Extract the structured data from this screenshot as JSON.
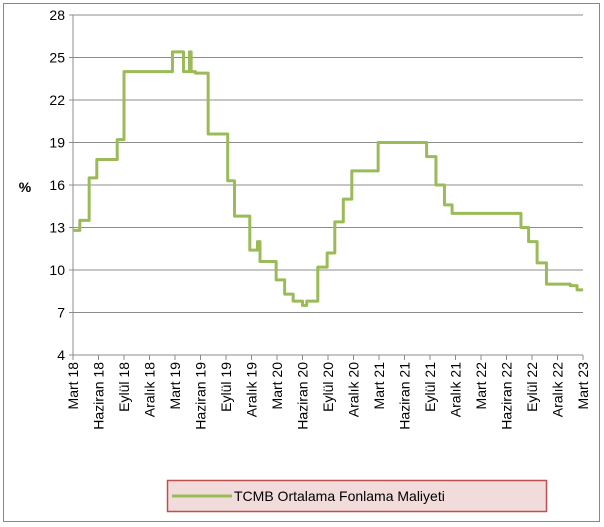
{
  "chart_data": {
    "type": "line",
    "ylabel": "%",
    "xlim": [
      0,
      60
    ],
    "ylim": [
      4,
      28
    ],
    "yticks": [
      4,
      7,
      10,
      13,
      16,
      19,
      22,
      25,
      28
    ],
    "xticks": [
      {
        "value": 0,
        "label": "Mart 18"
      },
      {
        "value": 3,
        "label": "Haziran 18"
      },
      {
        "value": 6,
        "label": "Eylül 18"
      },
      {
        "value": 9,
        "label": "Aralık 18"
      },
      {
        "value": 12,
        "label": "Mart 19"
      },
      {
        "value": 15,
        "label": "Haziran 19"
      },
      {
        "value": 18,
        "label": "Eylül 19"
      },
      {
        "value": 21,
        "label": "Aralık 19"
      },
      {
        "value": 24,
        "label": "Mart 20"
      },
      {
        "value": 27,
        "label": "Haziran 20"
      },
      {
        "value": 30,
        "label": "Eylül 20"
      },
      {
        "value": 33,
        "label": "Aralık 20"
      },
      {
        "value": 36,
        "label": "Mart 21"
      },
      {
        "value": 39,
        "label": "Haziran 21"
      },
      {
        "value": 42,
        "label": "Eylül 21"
      },
      {
        "value": 45,
        "label": "Aralık 21"
      },
      {
        "value": 48,
        "label": "Mart 22"
      },
      {
        "value": 51,
        "label": "Haziran 22"
      },
      {
        "value": 54,
        "label": "Eylül 22"
      },
      {
        "value": 57,
        "label": "Aralık 22"
      },
      {
        "value": 60,
        "label": "Mart 23"
      }
    ],
    "grid": true,
    "x": [
      0,
      0.8,
      0.8,
      1.9,
      1.9,
      2.8,
      2.8,
      5.2,
      5.2,
      6,
      6,
      11.7,
      11.7,
      13,
      13,
      13.7,
      13.7,
      13.9,
      13.9,
      14.4,
      14.4,
      15.9,
      15.9,
      18.2,
      18.2,
      19,
      19,
      20.8,
      20.8,
      21.7,
      21.7,
      22,
      22,
      23.9,
      23.9,
      24.9,
      24.9,
      25.9,
      25.9,
      27,
      27,
      27.5,
      27.5,
      28.8,
      28.8,
      29.9,
      29.9,
      30.8,
      30.8,
      31.8,
      31.8,
      32.8,
      32.8,
      35.9,
      35.9,
      41.6,
      41.6,
      42.7,
      42.7,
      43.7,
      43.7,
      44.6,
      44.6,
      52.7,
      52.7,
      53.6,
      53.6,
      54.6,
      54.6,
      55.7,
      55.7,
      58.5,
      58.5,
      59.3,
      59.3,
      60
    ],
    "series": [
      {
        "name": "TCMB Ortalama Fonlama Maliyeti",
        "color": "#9bbb59",
        "values": [
          12.8,
          12.8,
          13.5,
          13.5,
          16.5,
          16.5,
          17.8,
          17.8,
          19.2,
          19.2,
          24,
          24,
          25.4,
          25.4,
          24,
          24,
          25.4,
          25.4,
          24,
          24,
          23.9,
          23.9,
          19.6,
          19.6,
          16.3,
          16.3,
          13.8,
          13.8,
          11.4,
          11.4,
          12,
          12,
          10.6,
          10.6,
          9.3,
          9.3,
          8.3,
          8.3,
          7.8,
          7.8,
          7.5,
          7.5,
          7.8,
          7.8,
          10.2,
          10.2,
          11.2,
          11.2,
          13.4,
          13.4,
          15,
          15,
          17,
          17,
          19,
          19,
          18,
          18,
          16,
          16,
          14.6,
          14.6,
          14,
          14,
          13,
          13,
          12,
          12,
          10.5,
          10.5,
          9,
          9,
          8.9,
          8.9,
          8.6,
          8.6
        ]
      }
    ]
  }
}
